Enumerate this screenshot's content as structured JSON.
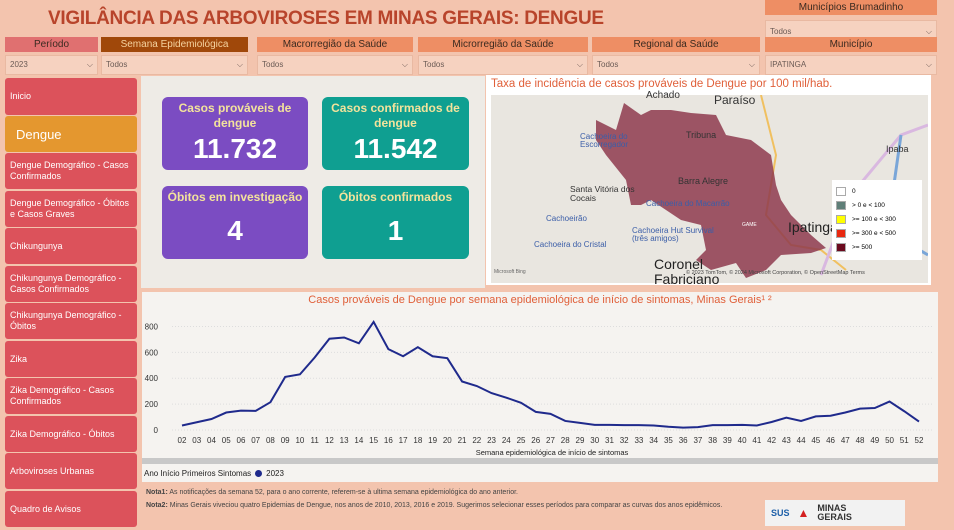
{
  "header": {
    "title": "VIGILÂNCIA DAS ARBOVIROSES EM MINAS GERAIS:  DENGUE"
  },
  "filters": [
    {
      "label": "Período",
      "value": "2023"
    },
    {
      "label": "Semana Epidemiológica",
      "value": "Todos"
    },
    {
      "label": "Macrorregião da Saúde",
      "value": "Todos"
    },
    {
      "label": "Microrregião da Saúde",
      "value": "Todos"
    },
    {
      "label": "Regional da Saúde",
      "value": "Todos"
    },
    {
      "label": "Município",
      "value": "IPATINGA"
    }
  ],
  "brumadinho": {
    "label": "Municípios Brumadinho",
    "value": "Todos"
  },
  "sidebar": {
    "items": [
      {
        "label": "Inicio"
      },
      {
        "label": "Dengue"
      },
      {
        "label": "Dengue Demográfico - Casos Confirmados"
      },
      {
        "label": "Dengue Demográfico - Óbitos e Casos Graves"
      },
      {
        "label": "Chikungunya"
      },
      {
        "label": "Chikungunya Demográfico - Casos Confirmados"
      },
      {
        "label": "Chikungunya Demográfico - Óbitos"
      },
      {
        "label": "Zika"
      },
      {
        "label": "Zika Demográfico - Casos Confirmados"
      },
      {
        "label": "Zika Demográfico - Óbitos"
      },
      {
        "label": "Arboviroses Urbanas"
      },
      {
        "label": "Quadro de Avisos"
      }
    ]
  },
  "kpis": [
    {
      "label": "Casos prováveis de dengue",
      "value": "11.732"
    },
    {
      "label": "Casos confirmados de dengue",
      "value": "11.542"
    },
    {
      "label": "Óbitos em investigação",
      "value": "4"
    },
    {
      "label": "Óbitos confirmados",
      "value": "1"
    }
  ],
  "map": {
    "title": "Taxa de incidência de casos prováveis de Dengue por 100 mil/hab.",
    "places": [
      "Achado",
      "Paraíso",
      "Tribuna",
      "Ipaba",
      "Cachoeira do Escorregador",
      "Barra Alegre",
      "Santa Vitória dos Cocais",
      "Cachoeira do Macarrão",
      "Cachoeirão",
      "Cachoeira Hut Survival (três amigos)",
      "Cachoeira do Cristal",
      "Ipatinga",
      "Coronel Fabriciano",
      "GAME"
    ],
    "legend": [
      {
        "label": "0",
        "color": "#ffffff"
      },
      {
        "label": "> 0 e < 100",
        "color": "#5f7f78"
      },
      {
        "label": ">= 100 e < 300",
        "color": "#ffff00"
      },
      {
        "label": ">= 300 e < 500",
        "color": "#e8280f"
      },
      {
        "label": ">= 500",
        "color": "#6b0a1e"
      }
    ],
    "attribution": "© 2023 TomTom, © 2024 Microsoft Corporation, © OpenStreetMap  Terms",
    "bing": "Microsoft Bing"
  },
  "chart_data": {
    "type": "line",
    "title": "Casos prováveis de Dengue por semana epidemiológica de início de sintomas, Minas Gerais¹ ²",
    "xlabel": "Semana epidemiológica de início de sintomas",
    "ylabel": "",
    "ylim": [
      0,
      850
    ],
    "yticks": [
      0,
      200,
      400,
      600,
      800
    ],
    "legend_title": "Ano Início Primeiros Sintomas",
    "grid": true,
    "categories": [
      "02",
      "03",
      "04",
      "05",
      "06",
      "07",
      "08",
      "09",
      "10",
      "11",
      "12",
      "13",
      "14",
      "15",
      "16",
      "17",
      "18",
      "19",
      "20",
      "21",
      "22",
      "23",
      "24",
      "25",
      "26",
      "27",
      "28",
      "29",
      "30",
      "31",
      "32",
      "33",
      "34",
      "35",
      "36",
      "37",
      "38",
      "39",
      "40",
      "41",
      "42",
      "43",
      "44",
      "45",
      "46",
      "47",
      "48",
      "49",
      "50",
      "51",
      "52"
    ],
    "series": [
      {
        "name": "2023",
        "color": "#1f2a8c",
        "values": [
          35,
          60,
          85,
          135,
          150,
          148,
          215,
          410,
          430,
          560,
          705,
          715,
          670,
          835,
          625,
          570,
          640,
          570,
          555,
          375,
          340,
          285,
          250,
          210,
          140,
          125,
          70,
          55,
          40,
          40,
          38,
          38,
          35,
          25,
          18,
          22,
          38,
          38,
          40,
          35,
          62,
          95,
          70,
          105,
          110,
          135,
          165,
          170,
          220,
          145,
          65
        ]
      }
    ]
  },
  "notes": {
    "n1_label": "Nota1:",
    "n1": " As notificações da semana 52, para o ano corrente, referem-se à ultima semana epidemiológica do ano anterior.",
    "n2_label": "Nota2:",
    "n2": " Minas Gerais viveciou quatro Epidemias de Dengue, nos anos de 2010, 2013, 2016 e 2019. Sugerimos selecionar esses períodos para comparar as curvas dos anos epidêmicos."
  },
  "logos": {
    "sus": "SUS",
    "mg": "MINAS GERAIS"
  }
}
